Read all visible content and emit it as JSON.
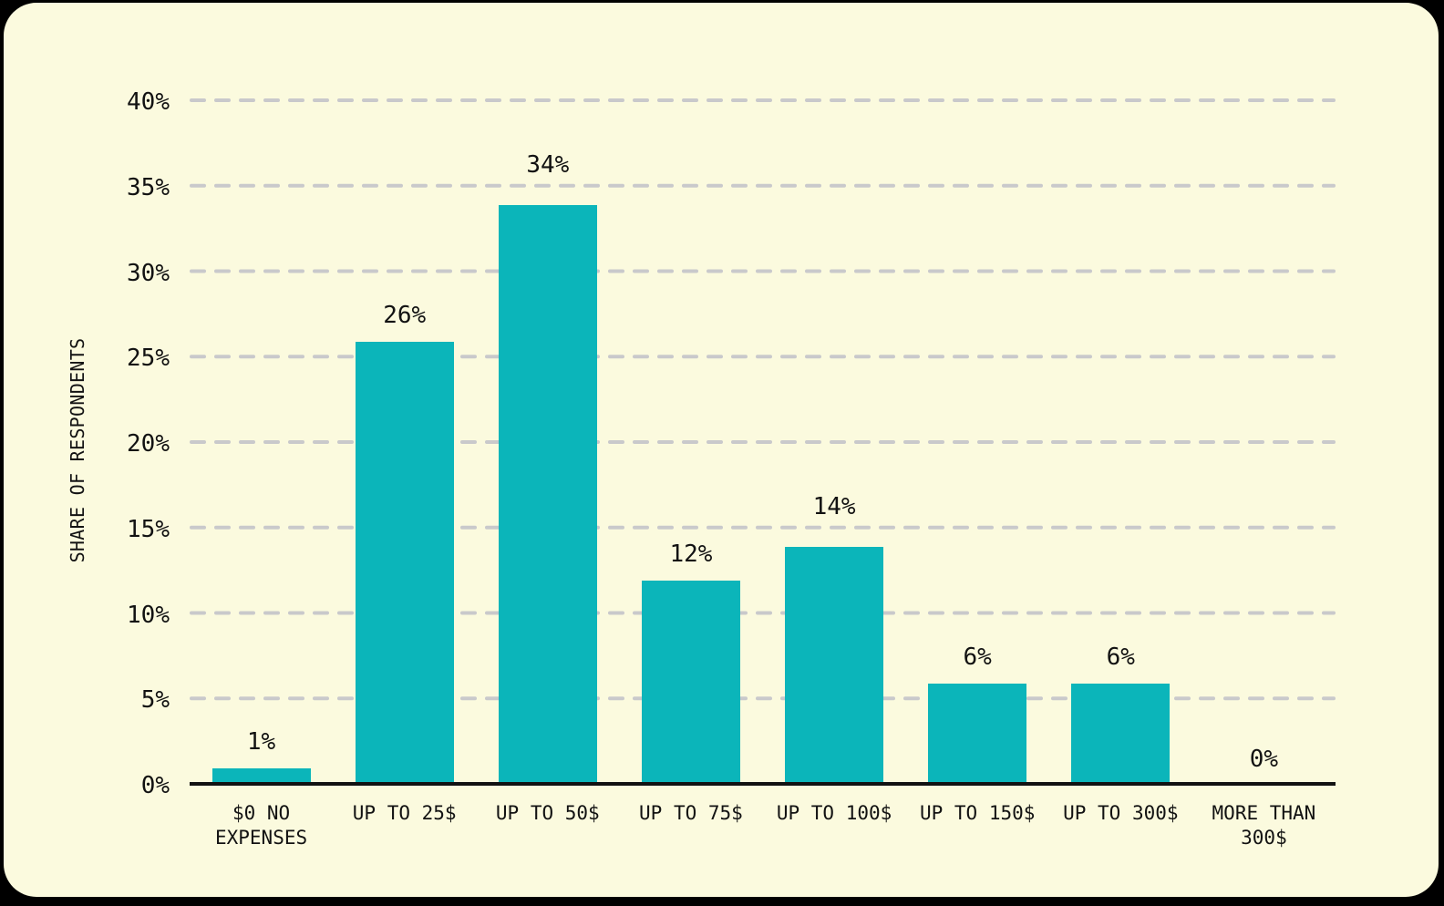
{
  "chart_data": {
    "type": "bar",
    "title": "",
    "xlabel": "",
    "ylabel": "SHARE OF RESPONDENTS",
    "categories": [
      "$0 NO\nEXPENSES",
      "UP TO 25$",
      "UP TO 50$",
      "UP TO 75$",
      "UP TO 100$",
      "UP TO 150$",
      "UP TO 300$",
      "MORE THAN\n300$"
    ],
    "values": [
      1,
      26,
      34,
      12,
      14,
      6,
      6,
      0
    ],
    "value_labels": [
      "1%",
      "26%",
      "34%",
      "12%",
      "14%",
      "6%",
      "6%",
      "0%"
    ],
    "yticks": [
      0,
      5,
      10,
      15,
      20,
      25,
      30,
      35,
      40
    ],
    "ytick_labels": [
      "0%",
      "5%",
      "10%",
      "15%",
      "20%",
      "25%",
      "30%",
      "35%",
      "40%"
    ],
    "ylim": [
      0,
      40
    ],
    "grid": "horizontal-dashed",
    "legend": "none",
    "colors": {
      "bar": "#0bb5ba",
      "card_background": "#fbfade",
      "page_background": "#000000",
      "gridline": "#c9c9cb",
      "text": "#121212",
      "axis_line": "#121212"
    }
  }
}
